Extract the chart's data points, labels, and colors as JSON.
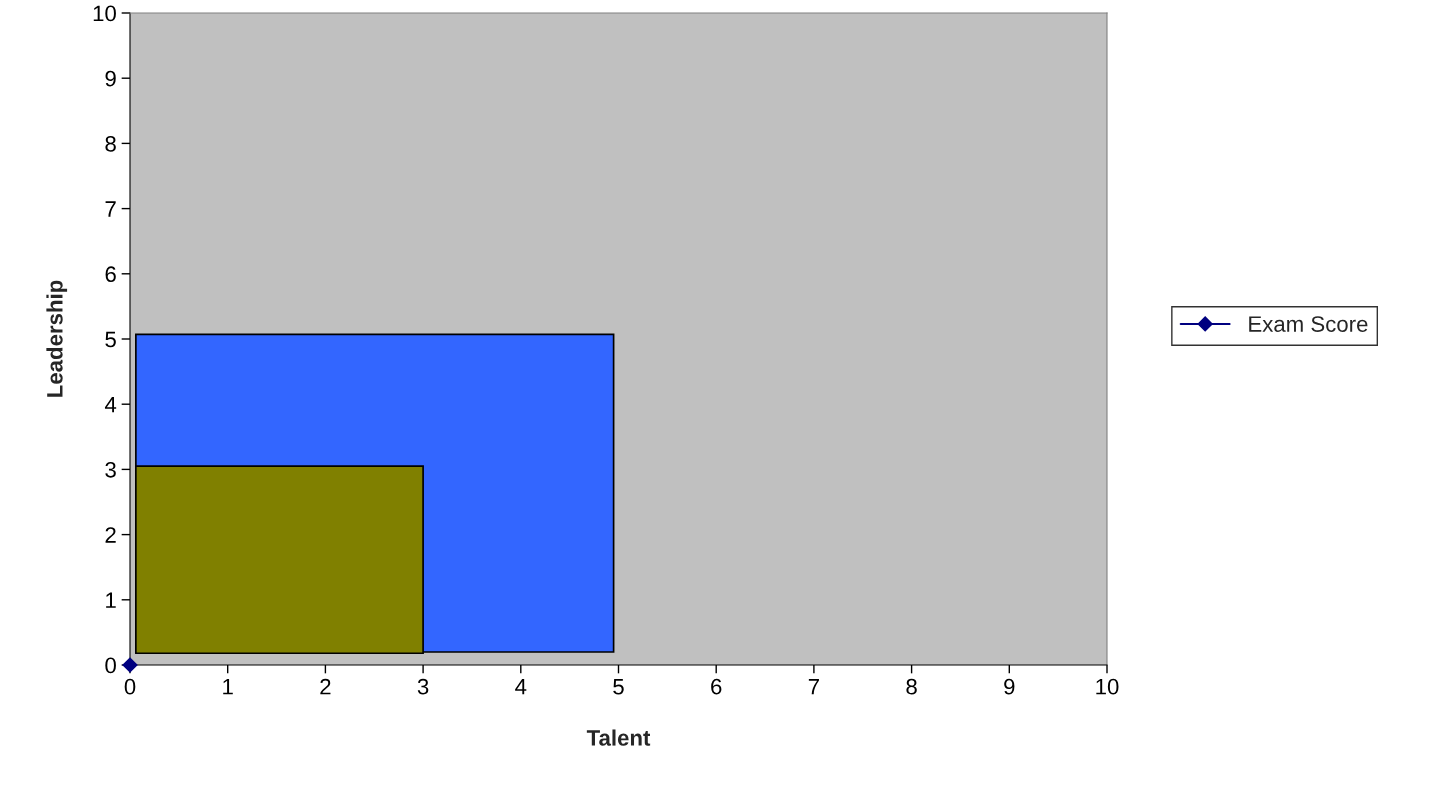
{
  "chart_data": {
    "type": "scatter",
    "xlabel": "Talent",
    "ylabel": "Leadership",
    "x": [
      0
    ],
    "series": [
      {
        "name": "Exam Score",
        "color": "#000080",
        "values": [
          0
        ]
      }
    ],
    "xlim": [
      0,
      10
    ],
    "ylim": [
      0,
      10
    ],
    "xticks": [
      0,
      1,
      2,
      3,
      4,
      5,
      6,
      7,
      8,
      9,
      10
    ],
    "yticks": [
      0,
      1,
      2,
      3,
      4,
      5,
      6,
      7,
      8,
      9,
      10
    ],
    "grid": false,
    "legend": "right",
    "marker": "diamond"
  }
}
